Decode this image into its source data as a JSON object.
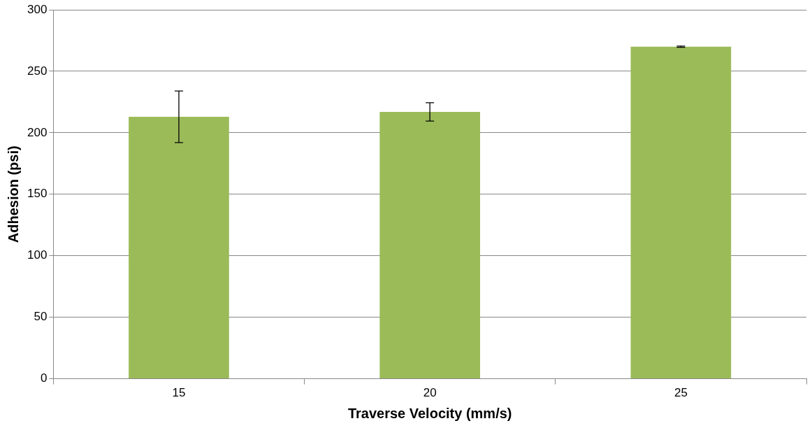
{
  "chart_data": {
    "type": "bar",
    "xlabel": "Traverse Velocity (mm/s)",
    "ylabel": "Adhesion (psi)",
    "categories": [
      "15",
      "20",
      "25"
    ],
    "values": [
      213,
      217,
      270
    ],
    "errors": [
      21,
      7.5,
      0.5
    ],
    "color": "#9bbb59",
    "ylim": [
      0,
      300
    ],
    "yticks": [
      0,
      50,
      100,
      150,
      200,
      250,
      300
    ],
    "grid": "y",
    "legend": false
  }
}
